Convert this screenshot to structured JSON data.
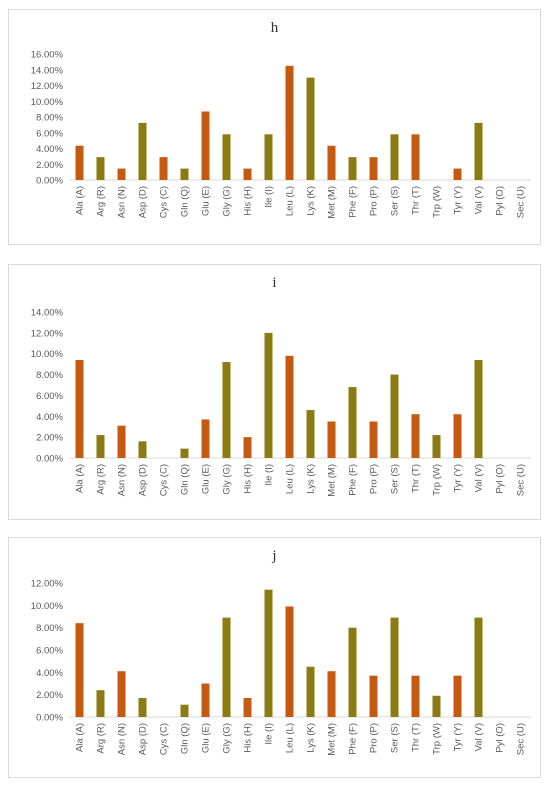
{
  "chart_data": [
    {
      "type": "bar",
      "title": "h",
      "categories": [
        "Ala (A)",
        "Arg (R)",
        "Asn (N)",
        "Asp (D)",
        "Cys (C)",
        "Gln (Q)",
        "Glu (E)",
        "Gly (G)",
        "His (H)",
        "Ile (I)",
        "Leu (L)",
        "Lys (K)",
        "Met (M)",
        "Phe (F)",
        "Pro (P)",
        "Ser (S)",
        "Thr (T)",
        "Trp (W)",
        "Tyr (Y)",
        "Val (V)",
        "Pyl (O)",
        "Sec (U)"
      ],
      "values": [
        4.35,
        2.9,
        1.45,
        7.25,
        2.9,
        1.45,
        8.7,
        5.8,
        1.45,
        5.8,
        14.5,
        13.0,
        4.35,
        2.9,
        2.9,
        5.8,
        5.8,
        0,
        1.45,
        7.25,
        0,
        0
      ],
      "ylim": [
        0,
        16
      ],
      "yticks": [
        "0.00%",
        "2.00%",
        "4.00%",
        "6.00%",
        "8.00%",
        "10.00%",
        "12.00%",
        "14.00%",
        "16.00%"
      ],
      "colors": [
        "#c55a11",
        "#8c7a12"
      ],
      "grid": false,
      "legend": "none"
    },
    {
      "type": "bar",
      "title": "i",
      "categories": [
        "Ala (A)",
        "Arg (R)",
        "Asn (N)",
        "Asp (D)",
        "Cys (C)",
        "Gln (Q)",
        "Glu (E)",
        "Gly (G)",
        "His (H)",
        "Ile (I)",
        "Leu (L)",
        "Lys (K)",
        "Met (M)",
        "Phe (F)",
        "Pro (P)",
        "Ser (S)",
        "Thr (T)",
        "Trp (W)",
        "Tyr (Y)",
        "Val (V)",
        "Pyl (O)",
        "Sec (U)"
      ],
      "values": [
        9.4,
        2.2,
        3.1,
        1.6,
        0,
        0.9,
        3.7,
        9.2,
        2.0,
        12.0,
        9.8,
        4.6,
        3.5,
        6.8,
        3.5,
        8.0,
        4.2,
        2.2,
        4.2,
        9.4,
        0,
        0
      ],
      "ylim": [
        0,
        14
      ],
      "yticks": [
        "0.00%",
        "2.00%",
        "4.00%",
        "6.00%",
        "8.00%",
        "10.00%",
        "12.00%",
        "14.00%"
      ],
      "colors": [
        "#c55a11",
        "#8c7a12"
      ],
      "grid": false,
      "legend": "none"
    },
    {
      "type": "bar",
      "title": "j",
      "categories": [
        "Ala (A)",
        "Arg (R)",
        "Asn (N)",
        "Asp (D)",
        "Cys (C)",
        "Gln (Q)",
        "Glu (E)",
        "Gly (G)",
        "His (H)",
        "Ile (I)",
        "Leu (L)",
        "Lys (K)",
        "Met (M)",
        "Phe (F)",
        "Pro (P)",
        "Ser (S)",
        "Thr (T)",
        "Trp (W)",
        "Tyr (Y)",
        "Val (V)",
        "Pyl (O)",
        "Sec (U)"
      ],
      "values": [
        8.4,
        2.4,
        4.1,
        1.7,
        0,
        1.1,
        3.0,
        8.9,
        1.7,
        11.4,
        9.9,
        4.5,
        4.1,
        8.0,
        3.7,
        8.9,
        3.7,
        1.9,
        3.7,
        8.9,
        0,
        0
      ],
      "ylim": [
        0,
        12
      ],
      "yticks": [
        "0.00%",
        "2.00%",
        "4.00%",
        "6.00%",
        "8.00%",
        "10.00%",
        "12.00%"
      ],
      "colors": [
        "#c55a11",
        "#8c7a12"
      ],
      "grid": false,
      "legend": "none"
    }
  ]
}
